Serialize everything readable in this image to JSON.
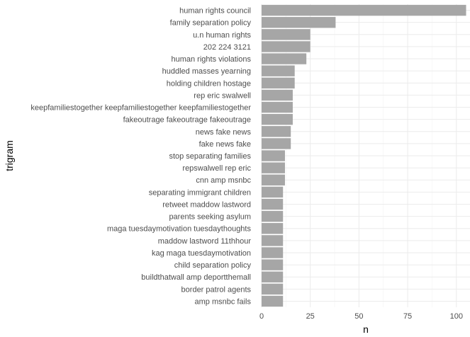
{
  "chart_data": {
    "type": "bar",
    "orientation": "horizontal",
    "title": "",
    "xlabel": "n",
    "ylabel": "trigram",
    "xlim": [
      0,
      107
    ],
    "xticks": [
      0,
      25,
      50,
      75,
      100
    ],
    "grid": true,
    "bar_color": "#a6a6a6",
    "categories": [
      "human rights council",
      "family separation policy",
      "u.n human rights",
      "202 224 3121",
      "human rights violations",
      "huddled masses yearning",
      "holding children hostage",
      "rep eric swalwell",
      "keepfamiliestogether keepfamiliestogether keepfamiliestogether",
      "fakeoutrage fakeoutrage fakeoutrage",
      "news fake news",
      "fake news fake",
      "stop separating families",
      "repswalwell rep eric",
      "cnn amp msnbc",
      "separating immigrant children",
      "retweet maddow lastword",
      "parents seeking asylum",
      "maga tuesdaymotivation tuesdaythoughts",
      "maddow lastword 11thhour",
      "kag maga tuesdaymotivation",
      "child separation policy",
      "buildthatwall amp deportthemall",
      "border patrol agents",
      "amp msnbc fails"
    ],
    "values": [
      105,
      38,
      25,
      25,
      23,
      17,
      17,
      16,
      16,
      16,
      15,
      15,
      12,
      12,
      12,
      11,
      11,
      11,
      11,
      11,
      11,
      11,
      11,
      11,
      11
    ]
  }
}
